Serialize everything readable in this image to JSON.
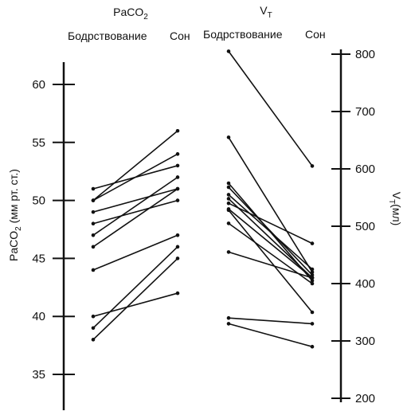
{
  "chart_data": [
    {
      "type": "line",
      "panel": "left",
      "title_main": "PaCO",
      "title_sub": "2",
      "column_labels": [
        "Бодрствование",
        "Сон"
      ],
      "ylabel_main": "PaCO",
      "ylabel_sub": "2",
      "ylabel_rest": " (мм рт. ст.)",
      "ylim": [
        33,
        62
      ],
      "yticks": [
        35,
        40,
        45,
        50,
        55,
        60
      ],
      "series": [
        {
          "values": [
            51,
            53
          ]
        },
        {
          "values": [
            50,
            56
          ]
        },
        {
          "values": [
            50,
            54
          ]
        },
        {
          "values": [
            49,
            51
          ]
        },
        {
          "values": [
            48,
            50
          ]
        },
        {
          "values": [
            47,
            52
          ]
        },
        {
          "values": [
            46,
            51
          ]
        },
        {
          "values": [
            44,
            47
          ]
        },
        {
          "values": [
            40,
            42
          ]
        },
        {
          "values": [
            39,
            46
          ]
        },
        {
          "values": [
            38,
            45
          ]
        }
      ]
    },
    {
      "type": "line",
      "panel": "right",
      "title_main": "V",
      "title_sub": "T",
      "column_labels": [
        "Бодрствование",
        "Сон"
      ],
      "ylabel_main": "V",
      "ylabel_sub": "T",
      "ylabel_rest": "(мл)",
      "ylim": [
        195,
        810
      ],
      "yticks": [
        200,
        300,
        400,
        500,
        600,
        700,
        800
      ],
      "series": [
        {
          "values": [
            805,
            605
          ]
        },
        {
          "values": [
            655,
            420
          ]
        },
        {
          "values": [
            575,
            405
          ]
        },
        {
          "values": [
            568,
            415
          ]
        },
        {
          "values": [
            555,
            425
          ]
        },
        {
          "values": [
            548,
            410
          ]
        },
        {
          "values": [
            540,
            470
          ]
        },
        {
          "values": [
            530,
            410
          ]
        },
        {
          "values": [
            528,
            350
          ]
        },
        {
          "values": [
            505,
            400
          ]
        },
        {
          "values": [
            455,
            410
          ]
        },
        {
          "values": [
            340,
            330
          ]
        },
        {
          "values": [
            330,
            290
          ]
        }
      ]
    }
  ]
}
